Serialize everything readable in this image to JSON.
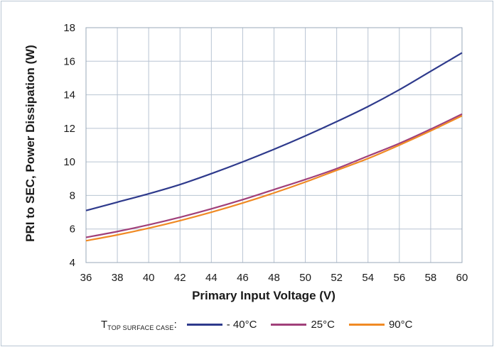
{
  "chart_data": {
    "type": "line",
    "title": "",
    "xlabel": "Primary Input Voltage (V)",
    "ylabel": "PRI to SEC, Power Dissipation (W)",
    "xlim": [
      36,
      60
    ],
    "ylim": [
      4,
      18
    ],
    "xticks": [
      "36",
      "38",
      "40",
      "42",
      "44",
      "46",
      "48",
      "50",
      "52",
      "54",
      "56",
      "58",
      "60"
    ],
    "yticks": [
      "4",
      "6",
      "8",
      "10",
      "12",
      "14",
      "16",
      "18"
    ],
    "grid": true,
    "legend_position": "bottom",
    "legend_title_main": "T",
    "legend_title_sub": "TOP SURFACE CASE",
    "legend_title_suffix": ":",
    "series": [
      {
        "name": "- 40°C",
        "color": "#2e3a8c",
        "x": [
          36,
          38,
          40,
          42,
          44,
          46,
          48,
          50,
          52,
          54,
          56,
          58,
          60
        ],
        "y": [
          7.1,
          7.6,
          8.1,
          8.65,
          9.3,
          10.0,
          10.75,
          11.55,
          12.4,
          13.3,
          14.3,
          15.4,
          16.5
        ]
      },
      {
        "name": "25°C",
        "color": "#a0407a",
        "x": [
          36,
          38,
          40,
          42,
          44,
          46,
          48,
          50,
          52,
          54,
          56,
          58,
          60
        ],
        "y": [
          5.5,
          5.85,
          6.25,
          6.7,
          7.2,
          7.75,
          8.35,
          8.95,
          9.6,
          10.35,
          11.1,
          11.95,
          12.85
        ]
      },
      {
        "name": "90°C",
        "color": "#f08a24",
        "x": [
          36,
          38,
          40,
          42,
          44,
          46,
          48,
          50,
          52,
          54,
          56,
          58,
          60
        ],
        "y": [
          5.3,
          5.65,
          6.05,
          6.5,
          7.0,
          7.55,
          8.15,
          8.8,
          9.5,
          10.2,
          11.0,
          11.85,
          12.75
        ]
      }
    ]
  }
}
